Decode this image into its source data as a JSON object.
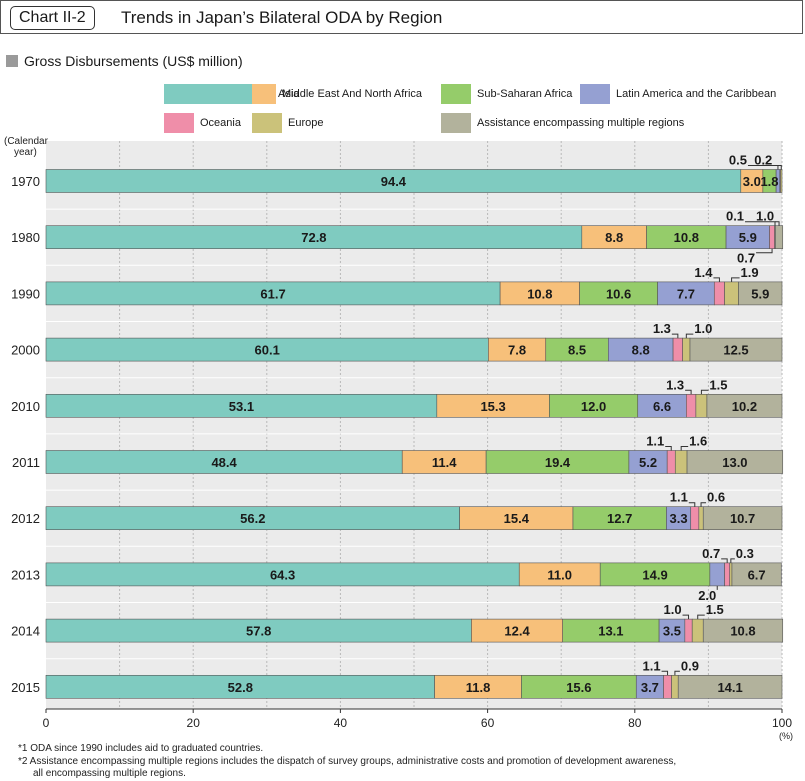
{
  "header": {
    "chart_id": "Chart II-2",
    "title": "Trends in Japan’s Bilateral ODA by Region"
  },
  "subtitle": "Gross Disbursements (US$ million)",
  "legend": [
    {
      "label": "Asia",
      "color": "#7fcbc0"
    },
    {
      "label": "Middle East And North Africa",
      "color": "#f7c07a"
    },
    {
      "label": "Sub-Saharan Africa",
      "color": "#95cc6a"
    },
    {
      "label": "Latin America and the Caribbean",
      "color": "#95a0d2"
    },
    {
      "label": "Oceania",
      "color": "#ef8ea9"
    },
    {
      "label": "Europe",
      "color": "#cbc27a"
    },
    {
      "label": "Assistance encompassing multiple regions",
      "color": "#b2b29c"
    }
  ],
  "notes": [
    "*1 ODA since 1990 includes aid to graduated countries.",
    "*2 Assistance encompassing multiple regions includes the dispatch of survey groups, administrative costs and promotion of development awareness,",
    "all encompassing multiple regions."
  ],
  "chart_data": {
    "type": "bar",
    "orientation": "horizontal",
    "stacked": true,
    "ylabel": "(Calendar year)",
    "xlabel": "(%)",
    "xlim": [
      0,
      100
    ],
    "xticks": [
      "0",
      "20",
      "40",
      "60",
      "80",
      "100"
    ],
    "categories": [
      "1970",
      "1980",
      "1990",
      "2000",
      "2010",
      "2011",
      "2012",
      "2013",
      "2014",
      "2015"
    ],
    "series": [
      {
        "name": "Asia",
        "values": [
          94.4,
          72.8,
          61.7,
          60.1,
          53.1,
          48.4,
          56.2,
          64.3,
          57.8,
          52.8
        ]
      },
      {
        "name": "Middle East And North Africa",
        "values": [
          3.0,
          8.8,
          10.8,
          7.8,
          15.3,
          11.4,
          15.4,
          11.0,
          12.4,
          11.8
        ]
      },
      {
        "name": "Sub-Saharan Africa",
        "values": [
          1.8,
          10.8,
          10.6,
          8.5,
          12.0,
          19.4,
          12.7,
          14.9,
          13.1,
          15.6
        ]
      },
      {
        "name": "Latin America and the Caribbean",
        "values": [
          0.5,
          5.9,
          7.7,
          8.8,
          6.6,
          5.2,
          3.3,
          2.0,
          3.5,
          3.7
        ]
      },
      {
        "name": "Oceania",
        "values": [
          0.1,
          0.7,
          1.4,
          1.3,
          1.3,
          1.1,
          1.1,
          0.7,
          1.0,
          1.1
        ]
      },
      {
        "name": "Europe",
        "values": [
          0.2,
          0.1,
          1.9,
          1.0,
          1.5,
          1.6,
          0.6,
          0.3,
          1.5,
          0.9
        ]
      },
      {
        "name": "Assistance encompassing multiple regions",
        "values": [
          0.0,
          1.0,
          5.9,
          12.5,
          10.2,
          13.0,
          10.7,
          6.7,
          10.8,
          14.1
        ]
      }
    ],
    "labels": [
      [
        {
          "s": 0,
          "text": "94.4",
          "mode": "in"
        },
        {
          "s": 1,
          "text": "3.0",
          "mode": "in"
        },
        {
          "s": 2,
          "text": "1.8",
          "mode": "in"
        },
        {
          "s": 3,
          "text": "0.5",
          "mode": "above",
          "dx": -40,
          "leader": true
        },
        {
          "s": 5,
          "text": "0.2",
          "mode": "above",
          "dx": -18,
          "leader": true
        }
      ],
      [
        {
          "s": 0,
          "text": "72.8",
          "mode": "in"
        },
        {
          "s": 1,
          "text": "8.8",
          "mode": "in"
        },
        {
          "s": 2,
          "text": "10.8",
          "mode": "in"
        },
        {
          "s": 3,
          "text": "5.9",
          "mode": "in"
        },
        {
          "s": 5,
          "text": "0.1",
          "mode": "above",
          "dx": -40,
          "leader": true
        },
        {
          "s": 6,
          "text": "1.0",
          "mode": "above",
          "dx": -14,
          "leader": true
        },
        {
          "s": 4,
          "text": "0.7",
          "mode": "below",
          "dx": -26,
          "leader": true
        }
      ],
      [
        {
          "s": 0,
          "text": "61.7",
          "mode": "in"
        },
        {
          "s": 1,
          "text": "10.8",
          "mode": "in"
        },
        {
          "s": 2,
          "text": "10.6",
          "mode": "in"
        },
        {
          "s": 3,
          "text": "7.7",
          "mode": "in"
        },
        {
          "s": 6,
          "text": "5.9",
          "mode": "in"
        },
        {
          "s": 4,
          "text": "1.4",
          "mode": "above",
          "dx": -16,
          "leader": true
        },
        {
          "s": 5,
          "text": "1.9",
          "mode": "above",
          "dx": 18,
          "leader": true
        }
      ],
      [
        {
          "s": 0,
          "text": "60.1",
          "mode": "in"
        },
        {
          "s": 1,
          "text": "7.8",
          "mode": "in"
        },
        {
          "s": 2,
          "text": "8.5",
          "mode": "in"
        },
        {
          "s": 3,
          "text": "8.8",
          "mode": "in"
        },
        {
          "s": 6,
          "text": "12.5",
          "mode": "in"
        },
        {
          "s": 4,
          "text": "1.3",
          "mode": "above",
          "dx": -16,
          "leader": true
        },
        {
          "s": 5,
          "text": "1.0",
          "mode": "above",
          "dx": 17,
          "leader": true
        }
      ],
      [
        {
          "s": 0,
          "text": "53.1",
          "mode": "in"
        },
        {
          "s": 1,
          "text": "15.3",
          "mode": "in"
        },
        {
          "s": 2,
          "text": "12.0",
          "mode": "in"
        },
        {
          "s": 3,
          "text": "6.6",
          "mode": "in"
        },
        {
          "s": 6,
          "text": "10.2",
          "mode": "in"
        },
        {
          "s": 4,
          "text": "1.3",
          "mode": "above",
          "dx": -16,
          "leader": true
        },
        {
          "s": 5,
          "text": "1.5",
          "mode": "above",
          "dx": 17,
          "leader": true
        }
      ],
      [
        {
          "s": 0,
          "text": "48.4",
          "mode": "in"
        },
        {
          "s": 1,
          "text": "11.4",
          "mode": "in"
        },
        {
          "s": 2,
          "text": "19.4",
          "mode": "in"
        },
        {
          "s": 3,
          "text": "5.2",
          "mode": "in"
        },
        {
          "s": 6,
          "text": "13.0",
          "mode": "in"
        },
        {
          "s": 4,
          "text": "1.1",
          "mode": "above",
          "dx": -16,
          "leader": true
        },
        {
          "s": 5,
          "text": "1.6",
          "mode": "above",
          "dx": 17,
          "leader": true
        }
      ],
      [
        {
          "s": 0,
          "text": "56.2",
          "mode": "in"
        },
        {
          "s": 1,
          "text": "15.4",
          "mode": "in"
        },
        {
          "s": 2,
          "text": "12.7",
          "mode": "in"
        },
        {
          "s": 3,
          "text": "3.3",
          "mode": "in"
        },
        {
          "s": 6,
          "text": "10.7",
          "mode": "in"
        },
        {
          "s": 4,
          "text": "1.1",
          "mode": "above",
          "dx": -16,
          "leader": true
        },
        {
          "s": 5,
          "text": "0.6",
          "mode": "above",
          "dx": 15,
          "leader": true
        }
      ],
      [
        {
          "s": 0,
          "text": "64.3",
          "mode": "in"
        },
        {
          "s": 1,
          "text": "11.0",
          "mode": "in"
        },
        {
          "s": 2,
          "text": "14.9",
          "mode": "in"
        },
        {
          "s": 6,
          "text": "6.7",
          "mode": "in"
        },
        {
          "s": 4,
          "text": "0.7",
          "mode": "above",
          "dx": -16,
          "leader": true
        },
        {
          "s": 5,
          "text": "0.3",
          "mode": "above",
          "dx": 14,
          "leader": true
        },
        {
          "s": 3,
          "text": "2.0",
          "mode": "below",
          "dx": -10,
          "leader": true
        }
      ],
      [
        {
          "s": 0,
          "text": "57.8",
          "mode": "in"
        },
        {
          "s": 1,
          "text": "12.4",
          "mode": "in"
        },
        {
          "s": 2,
          "text": "13.1",
          "mode": "in"
        },
        {
          "s": 3,
          "text": "3.5",
          "mode": "in"
        },
        {
          "s": 6,
          "text": "10.8",
          "mode": "in"
        },
        {
          "s": 4,
          "text": "1.0",
          "mode": "above",
          "dx": -16,
          "leader": true
        },
        {
          "s": 5,
          "text": "1.5",
          "mode": "above",
          "dx": 17,
          "leader": true
        }
      ],
      [
        {
          "s": 0,
          "text": "52.8",
          "mode": "in"
        },
        {
          "s": 1,
          "text": "11.8",
          "mode": "in"
        },
        {
          "s": 2,
          "text": "15.6",
          "mode": "in"
        },
        {
          "s": 3,
          "text": "3.7",
          "mode": "in"
        },
        {
          "s": 6,
          "text": "14.1",
          "mode": "in"
        },
        {
          "s": 4,
          "text": "1.1",
          "mode": "above",
          "dx": -16,
          "leader": true
        },
        {
          "s": 5,
          "text": "0.9",
          "mode": "above",
          "dx": 15,
          "leader": true
        }
      ]
    ]
  }
}
